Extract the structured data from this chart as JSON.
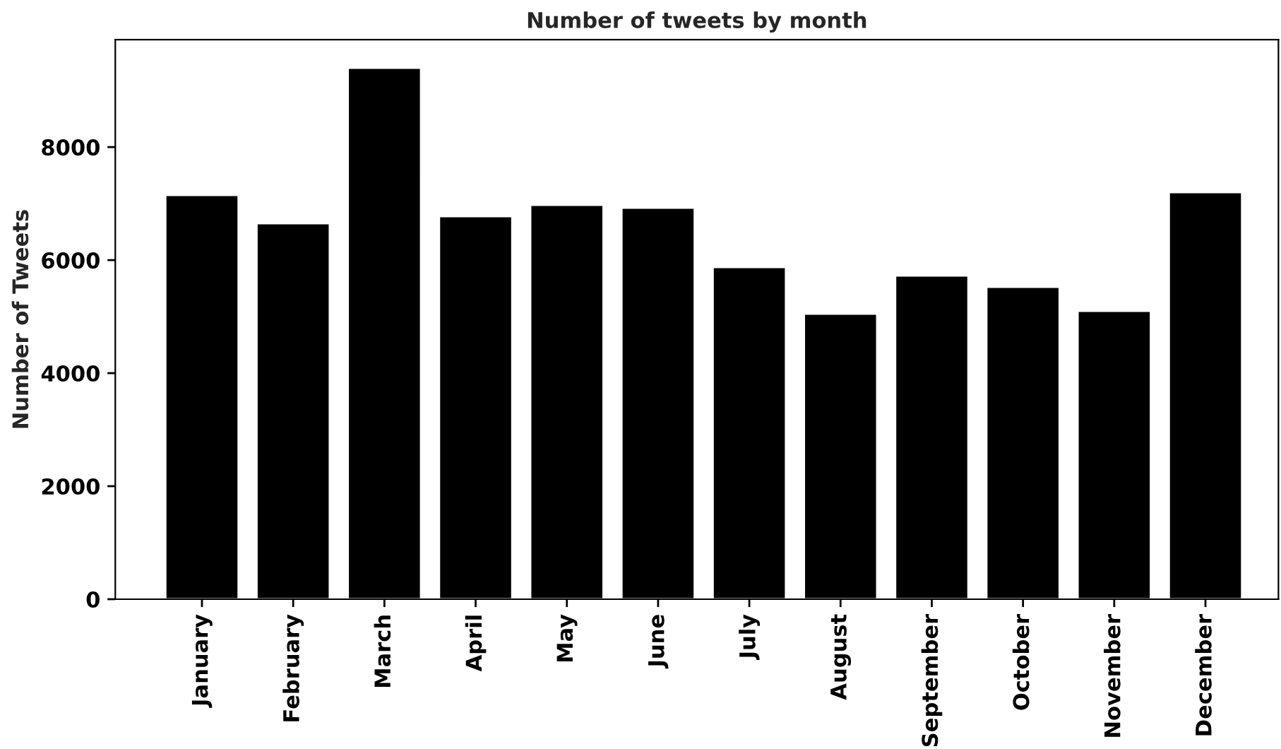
{
  "chart_data": {
    "type": "bar",
    "title": "Number of tweets by month",
    "ylabel": "Number of Tweets",
    "categories": [
      "January",
      "February",
      "March",
      "April",
      "May",
      "June",
      "July",
      "August",
      "September",
      "October",
      "November",
      "December"
    ],
    "values": [
      7150,
      6650,
      9400,
      6775,
      6975,
      6925,
      5875,
      5050,
      5725,
      5525,
      5100,
      7200
    ],
    "color": "#000000",
    "ylim": [
      0,
      9900
    ],
    "yticks": [
      0,
      2000,
      4000,
      6000,
      8000
    ],
    "grid": false,
    "legend": false
  }
}
